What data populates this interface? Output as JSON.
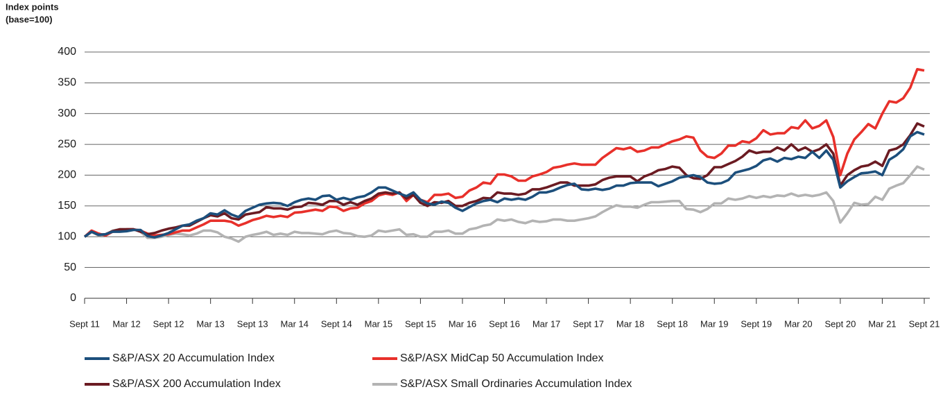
{
  "chart_data": {
    "type": "line",
    "y_label": [
      "Index points",
      "(base=100)"
    ],
    "categories": [
      "Sept 11",
      null,
      null,
      null,
      null,
      null,
      "Mar 12",
      null,
      null,
      null,
      null,
      null,
      "Sept 12",
      null,
      null,
      null,
      null,
      null,
      "Mar 13",
      null,
      null,
      null,
      null,
      null,
      "Sept 13",
      null,
      null,
      null,
      null,
      null,
      "Mar 14",
      null,
      null,
      null,
      null,
      null,
      "Sept 14",
      null,
      null,
      null,
      null,
      null,
      "Mar 15",
      null,
      null,
      null,
      null,
      null,
      "Sept 15",
      null,
      null,
      null,
      null,
      null,
      "Mar 16",
      null,
      null,
      null,
      null,
      null,
      "Sept 16",
      null,
      null,
      null,
      null,
      null,
      "Mar 17",
      null,
      null,
      null,
      null,
      null,
      "Sept 17",
      null,
      null,
      null,
      null,
      null,
      "Mar 18",
      null,
      null,
      null,
      null,
      null,
      "Sept 18",
      null,
      null,
      null,
      null,
      null,
      "Mar 19",
      null,
      null,
      null,
      null,
      null,
      "Sept 19",
      null,
      null,
      null,
      null,
      null,
      "Mar 20",
      null,
      null,
      null,
      null,
      null,
      "Sept 20",
      null,
      null,
      null,
      null,
      null,
      "Mar 21",
      null,
      null,
      null,
      null,
      null,
      "Sept 21"
    ],
    "ylim": [
      0,
      400
    ],
    "yticks": [
      0,
      50,
      100,
      150,
      200,
      250,
      300,
      350,
      400
    ],
    "grid": true,
    "series": [
      {
        "name": "S&P/ASX Small Ordinaries Accumulation Index",
        "color": "#b3b3b3",
        "values": [
          100,
          108,
          102,
          103,
          110,
          112,
          112,
          112,
          108,
          98,
          98,
          100,
          103,
          105,
          104,
          102,
          105,
          110,
          110,
          107,
          100,
          97,
          92,
          100,
          103,
          105,
          108,
          103,
          105,
          103,
          108,
          106,
          106,
          105,
          104,
          108,
          110,
          106,
          105,
          101,
          100,
          102,
          110,
          108,
          110,
          112,
          103,
          104,
          100,
          100,
          108,
          108,
          110,
          105,
          105,
          112,
          114,
          118,
          120,
          128,
          126,
          128,
          124,
          122,
          126,
          124,
          125,
          128,
          128,
          126,
          126,
          128,
          130,
          133,
          140,
          146,
          151,
          149,
          149,
          147,
          152,
          156,
          156,
          157,
          158,
          158,
          145,
          144,
          140,
          145,
          154,
          154,
          162,
          160,
          162,
          166,
          163,
          166,
          164,
          167,
          166,
          170,
          166,
          168,
          166,
          168,
          172,
          158,
          123,
          138,
          155,
          152,
          153,
          165,
          160,
          178,
          183,
          187,
          200,
          214,
          209
        ]
      },
      {
        "name": "S&P/ASX MidCap 50 Accumulation Index",
        "color": "#e8302a",
        "values": [
          100,
          110,
          105,
          102,
          108,
          110,
          112,
          112,
          110,
          105,
          102,
          103,
          104,
          107,
          110,
          110,
          115,
          120,
          126,
          126,
          126,
          124,
          118,
          122,
          127,
          130,
          134,
          132,
          134,
          132,
          139,
          140,
          142,
          144,
          142,
          149,
          148,
          142,
          146,
          147,
          154,
          158,
          167,
          170,
          168,
          172,
          158,
          168,
          160,
          156,
          168,
          168,
          170,
          163,
          165,
          175,
          180,
          188,
          186,
          201,
          201,
          198,
          191,
          191,
          198,
          201,
          205,
          212,
          214,
          217,
          219,
          217,
          217,
          217,
          228,
          236,
          244,
          242,
          245,
          238,
          240,
          245,
          245,
          250,
          255,
          258,
          263,
          261,
          240,
          230,
          228,
          235,
          248,
          248,
          255,
          253,
          260,
          273,
          266,
          268,
          268,
          278,
          276,
          289,
          276,
          280,
          289,
          262,
          200,
          235,
          258,
          270,
          283,
          276,
          300,
          320,
          318,
          325,
          342,
          372,
          370
        ]
      },
      {
        "name": "S&P/ASX 200 Accumulation Index",
        "color": "#6b1b22",
        "values": [
          100,
          108,
          103,
          104,
          109,
          112,
          112,
          112,
          108,
          104,
          106,
          110,
          113,
          115,
          118,
          118,
          124,
          130,
          135,
          133,
          138,
          130,
          128,
          136,
          138,
          140,
          148,
          146,
          146,
          144,
          148,
          149,
          155,
          154,
          152,
          158,
          158,
          152,
          156,
          152,
          158,
          162,
          170,
          172,
          170,
          172,
          162,
          168,
          155,
          150,
          156,
          155,
          158,
          150,
          150,
          155,
          158,
          163,
          162,
          172,
          170,
          170,
          168,
          170,
          177,
          177,
          180,
          184,
          188,
          188,
          183,
          183,
          183,
          185,
          192,
          196,
          198,
          198,
          198,
          190,
          198,
          202,
          208,
          210,
          214,
          212,
          200,
          195,
          194,
          200,
          213,
          213,
          218,
          223,
          230,
          240,
          236,
          238,
          238,
          245,
          240,
          250,
          240,
          245,
          238,
          242,
          250,
          235,
          183,
          200,
          208,
          214,
          216,
          222,
          215,
          240,
          243,
          250,
          265,
          284,
          279
        ]
      },
      {
        "name": "S&P/ASX 20 Accumulation Index",
        "color": "#1c4f7c",
        "values": [
          100,
          108,
          103,
          104,
          108,
          108,
          109,
          111,
          111,
          101,
          99,
          102,
          106,
          112,
          118,
          120,
          126,
          130,
          138,
          136,
          143,
          136,
          132,
          142,
          147,
          152,
          154,
          155,
          154,
          150,
          156,
          160,
          162,
          160,
          166,
          167,
          160,
          163,
          160,
          164,
          166,
          172,
          180,
          180,
          175,
          170,
          166,
          172,
          160,
          154,
          152,
          157,
          155,
          147,
          142,
          148,
          154,
          158,
          160,
          156,
          162,
          160,
          162,
          160,
          165,
          172,
          172,
          175,
          180,
          184,
          186,
          177,
          176,
          178,
          176,
          178,
          183,
          183,
          187,
          188,
          188,
          188,
          182,
          186,
          190,
          196,
          198,
          200,
          197,
          188,
          186,
          187,
          192,
          204,
          207,
          210,
          215,
          224,
          227,
          222,
          228,
          226,
          230,
          228,
          238,
          228,
          240,
          225,
          180,
          190,
          197,
          203,
          204,
          206,
          200,
          225,
          232,
          242,
          263,
          270,
          266
        ]
      }
    ]
  }
}
